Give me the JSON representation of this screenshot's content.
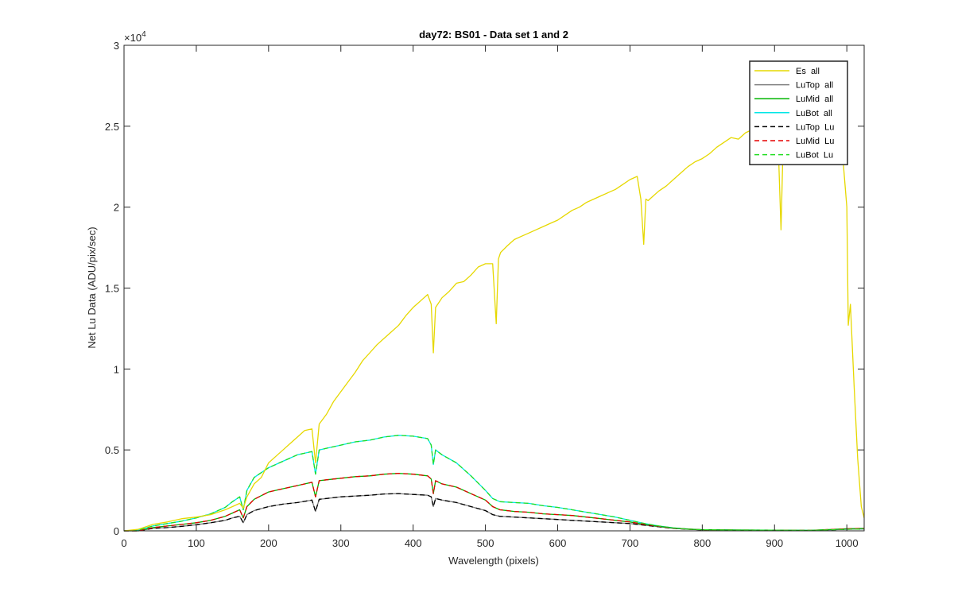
{
  "chart_data": {
    "type": "line",
    "title": "day72: BS01 - Data set 1 and 2",
    "xlabel": "Wavelength (pixels)",
    "ylabel": "Net Lu Data (ADU/pix/sec)",
    "xlim": [
      0,
      1024
    ],
    "ylim": [
      0,
      30000
    ],
    "y_exponent_label": "×10",
    "y_exponent_power": "4",
    "xticks": [
      0,
      100,
      200,
      300,
      400,
      500,
      600,
      700,
      800,
      900,
      1000
    ],
    "xtick_labels": [
      "0",
      "100",
      "200",
      "300",
      "400",
      "500",
      "600",
      "700",
      "800",
      "900",
      "1000"
    ],
    "yticks": [
      0,
      5000,
      10000,
      15000,
      20000,
      25000,
      30000
    ],
    "ytick_labels": [
      "0",
      "0.5",
      "1",
      "1.5",
      "2",
      "2.5",
      "3"
    ],
    "grid": false,
    "legend_position": "top-right",
    "series": [
      {
        "name": "Es  all",
        "color": "#e6d800",
        "style": "solid",
        "x": [
          0,
          20,
          40,
          60,
          80,
          100,
          120,
          140,
          150,
          160,
          165,
          170,
          180,
          190,
          200,
          210,
          220,
          230,
          240,
          250,
          260,
          265,
          270,
          280,
          290,
          300,
          310,
          320,
          330,
          340,
          350,
          360,
          370,
          380,
          390,
          400,
          410,
          420,
          425,
          428,
          431,
          440,
          450,
          460,
          470,
          480,
          490,
          500,
          510,
          515,
          518,
          521,
          530,
          540,
          550,
          560,
          570,
          580,
          590,
          600,
          610,
          620,
          630,
          640,
          650,
          660,
          670,
          680,
          690,
          700,
          710,
          715,
          719,
          722,
          725,
          730,
          740,
          750,
          760,
          770,
          780,
          790,
          800,
          810,
          820,
          830,
          840,
          850,
          860,
          870,
          880,
          890,
          900,
          905,
          909,
          912,
          915,
          930,
          950,
          970,
          990,
          995,
          1000,
          1002,
          1005,
          1010,
          1015,
          1020,
          1024
        ],
        "y": [
          0,
          100,
          400,
          550,
          750,
          850,
          1000,
          1300,
          1500,
          1700,
          1400,
          2100,
          2900,
          3300,
          4200,
          4600,
          5000,
          5400,
          5800,
          6200,
          6300,
          4200,
          6600,
          7200,
          8000,
          8600,
          9200,
          9800,
          10500,
          11000,
          11500,
          11900,
          12300,
          12700,
          13300,
          13800,
          14200,
          14600,
          14000,
          11000,
          13800,
          14400,
          14800,
          15300,
          15400,
          15800,
          16300,
          16500,
          16500,
          12800,
          16800,
          17200,
          17600,
          18000,
          18200,
          18400,
          18600,
          18800,
          19000,
          19200,
          19500,
          19800,
          20000,
          20300,
          20500,
          20700,
          20900,
          21100,
          21400,
          21700,
          21900,
          20500,
          17700,
          20500,
          20400,
          20600,
          21000,
          21300,
          21700,
          22100,
          22500,
          22800,
          23000,
          23300,
          23700,
          24000,
          24300,
          24200,
          24600,
          24800,
          24700,
          24800,
          24900,
          24000,
          18600,
          24200,
          24500,
          24600,
          24700,
          24500,
          24000,
          22800,
          20000,
          12700,
          14000,
          9000,
          4500,
          1500,
          800
        ]
      },
      {
        "name": "LuTop  all",
        "color": "#7f7f7f",
        "style": "solid",
        "x": [
          0,
          20,
          40,
          60,
          80,
          100,
          120,
          140,
          150,
          160,
          165,
          170,
          180,
          200,
          220,
          240,
          260,
          265,
          270,
          280,
          300,
          320,
          340,
          360,
          380,
          400,
          420,
          425,
          428,
          431,
          440,
          460,
          480,
          500,
          510,
          520,
          540,
          560,
          580,
          600,
          620,
          640,
          660,
          680,
          700,
          720,
          740,
          760,
          780,
          800,
          850,
          900,
          950,
          1000,
          1024
        ],
        "y": [
          0,
          0,
          150,
          200,
          280,
          380,
          500,
          650,
          800,
          900,
          500,
          1000,
          1250,
          1500,
          1650,
          1750,
          1900,
          1200,
          1950,
          2000,
          2100,
          2150,
          2200,
          2280,
          2300,
          2250,
          2200,
          2100,
          1500,
          2000,
          1900,
          1750,
          1500,
          1250,
          1000,
          900,
          850,
          800,
          750,
          700,
          650,
          600,
          550,
          500,
          450,
          350,
          250,
          150,
          100,
          60,
          40,
          30,
          20,
          100,
          120
        ]
      },
      {
        "name": "LuMid  all",
        "color": "#00b400",
        "style": "solid",
        "x": [
          0,
          20,
          40,
          60,
          80,
          100,
          120,
          140,
          150,
          160,
          165,
          170,
          180,
          200,
          220,
          240,
          260,
          265,
          270,
          280,
          300,
          320,
          340,
          360,
          380,
          400,
          420,
          425,
          428,
          431,
          440,
          460,
          480,
          500,
          510,
          520,
          540,
          560,
          580,
          600,
          620,
          640,
          660,
          680,
          700,
          720,
          740,
          760,
          780,
          800,
          850,
          900,
          950,
          1000,
          1024
        ],
        "y": [
          0,
          0,
          200,
          300,
          400,
          500,
          650,
          900,
          1100,
          1300,
          800,
          1500,
          1950,
          2400,
          2600,
          2800,
          3000,
          2100,
          3100,
          3150,
          3250,
          3350,
          3400,
          3500,
          3550,
          3500,
          3400,
          3200,
          2300,
          3100,
          2900,
          2700,
          2300,
          1900,
          1500,
          1300,
          1200,
          1150,
          1050,
          1000,
          950,
          850,
          750,
          650,
          550,
          400,
          280,
          170,
          110,
          70,
          50,
          40,
          30,
          130,
          150
        ]
      },
      {
        "name": "LuBot  all",
        "color": "#00e6e6",
        "style": "solid",
        "x": [
          0,
          20,
          40,
          60,
          80,
          100,
          120,
          140,
          150,
          160,
          165,
          170,
          180,
          200,
          220,
          240,
          260,
          265,
          270,
          280,
          300,
          320,
          340,
          360,
          380,
          400,
          420,
          425,
          428,
          431,
          440,
          460,
          480,
          500,
          510,
          520,
          540,
          560,
          580,
          600,
          620,
          640,
          660,
          680,
          700,
          720,
          740,
          760,
          780,
          800,
          850,
          900,
          950,
          1000,
          1024
        ],
        "y": [
          0,
          50,
          300,
          450,
          600,
          800,
          1050,
          1450,
          1800,
          2100,
          1300,
          2500,
          3300,
          3900,
          4300,
          4700,
          4900,
          3500,
          5000,
          5100,
          5300,
          5500,
          5600,
          5800,
          5900,
          5850,
          5700,
          5300,
          4100,
          5000,
          4700,
          4200,
          3400,
          2500,
          2000,
          1800,
          1750,
          1700,
          1550,
          1450,
          1300,
          1150,
          1000,
          850,
          650,
          450,
          300,
          180,
          110,
          70,
          50,
          40,
          30,
          100,
          120
        ]
      },
      {
        "name": "LuTop  Lu",
        "color": "#000000",
        "style": "dashed",
        "x": [
          0,
          20,
          40,
          60,
          80,
          100,
          120,
          140,
          150,
          160,
          165,
          170,
          180,
          200,
          220,
          240,
          260,
          265,
          270,
          280,
          300,
          320,
          340,
          360,
          380,
          400,
          420,
          425,
          428,
          431,
          440,
          460,
          480,
          500,
          510,
          520,
          540,
          560,
          580,
          600,
          620,
          640,
          660,
          680,
          700,
          720,
          740,
          760,
          780,
          800,
          850,
          900,
          950,
          1000,
          1024
        ],
        "y": [
          0,
          0,
          150,
          200,
          280,
          380,
          500,
          650,
          800,
          900,
          500,
          1000,
          1250,
          1500,
          1650,
          1750,
          1900,
          1200,
          1950,
          2000,
          2100,
          2150,
          2200,
          2280,
          2300,
          2250,
          2200,
          2100,
          1500,
          2000,
          1900,
          1750,
          1500,
          1250,
          1000,
          900,
          850,
          800,
          750,
          700,
          650,
          600,
          550,
          500,
          450,
          350,
          250,
          150,
          100,
          60,
          40,
          30,
          20,
          100,
          120
        ]
      },
      {
        "name": "LuMid  Lu",
        "color": "#e60000",
        "style": "dashed",
        "x": [
          0,
          20,
          40,
          60,
          80,
          100,
          120,
          140,
          150,
          160,
          165,
          170,
          180,
          200,
          220,
          240,
          260,
          265,
          270,
          280,
          300,
          320,
          340,
          360,
          380,
          400,
          420,
          425,
          428,
          431,
          440,
          460,
          480,
          500,
          510,
          520,
          540,
          560,
          580,
          600,
          620,
          640,
          660,
          680,
          700,
          720,
          740,
          760,
          780,
          800,
          850,
          900,
          950,
          1000,
          1024
        ],
        "y": [
          0,
          0,
          200,
          300,
          400,
          500,
          650,
          900,
          1100,
          1300,
          800,
          1500,
          1950,
          2400,
          2600,
          2800,
          3000,
          2100,
          3100,
          3150,
          3250,
          3350,
          3400,
          3500,
          3550,
          3500,
          3400,
          3200,
          2300,
          3100,
          2900,
          2700,
          2300,
          1900,
          1500,
          1300,
          1200,
          1150,
          1050,
          1000,
          950,
          850,
          750,
          650,
          550,
          400,
          280,
          170,
          110,
          70,
          50,
          40,
          30,
          130,
          150
        ]
      },
      {
        "name": "LuBot  Lu",
        "color": "#22dd22",
        "style": "dashed",
        "x": [
          0,
          20,
          40,
          60,
          80,
          100,
          120,
          140,
          150,
          160,
          165,
          170,
          180,
          200,
          220,
          240,
          260,
          265,
          270,
          280,
          300,
          320,
          340,
          360,
          380,
          400,
          420,
          425,
          428,
          431,
          440,
          460,
          480,
          500,
          510,
          520,
          540,
          560,
          580,
          600,
          620,
          640,
          660,
          680,
          700,
          720,
          740,
          760,
          780,
          800,
          850,
          900,
          950,
          1000,
          1024
        ],
        "y": [
          0,
          50,
          300,
          450,
          600,
          800,
          1050,
          1450,
          1800,
          2100,
          1300,
          2500,
          3300,
          3900,
          4300,
          4700,
          4900,
          3500,
          5000,
          5100,
          5300,
          5500,
          5600,
          5800,
          5900,
          5850,
          5700,
          5300,
          4100,
          5000,
          4700,
          4200,
          3400,
          2500,
          2000,
          1800,
          1750,
          1700,
          1550,
          1450,
          1300,
          1150,
          1000,
          850,
          650,
          450,
          300,
          180,
          110,
          70,
          50,
          40,
          30,
          100,
          120
        ]
      }
    ]
  }
}
